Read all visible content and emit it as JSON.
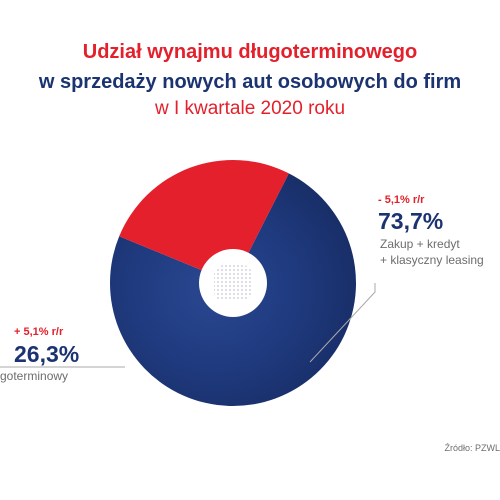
{
  "colors": {
    "red": "#e3202b",
    "navy": "#1b3370",
    "text_navy": "#1b3370",
    "gray": "#6d6d6d",
    "line": "#a9a9a9"
  },
  "chart_data": {
    "type": "pie",
    "title": "Udział wynajmu długoterminowego",
    "subtitle_lines": [
      "w sprzedaży nowych aut osobowych do firm",
      "w I kwartale 2020 roku"
    ],
    "slices": [
      {
        "value": 73.7,
        "label": "73,7%",
        "change": "- 5,1% r/r",
        "description": [
          "Zakup + kredyt",
          "+ klasyczny leasing"
        ],
        "color": "#1b3370"
      },
      {
        "value": 26.3,
        "label": "26,3%",
        "change": "+ 5,1% r/r",
        "description": [
          "goterminowy"
        ],
        "color": "#e3202b"
      }
    ],
    "source": "Źródło: PZWL"
  }
}
